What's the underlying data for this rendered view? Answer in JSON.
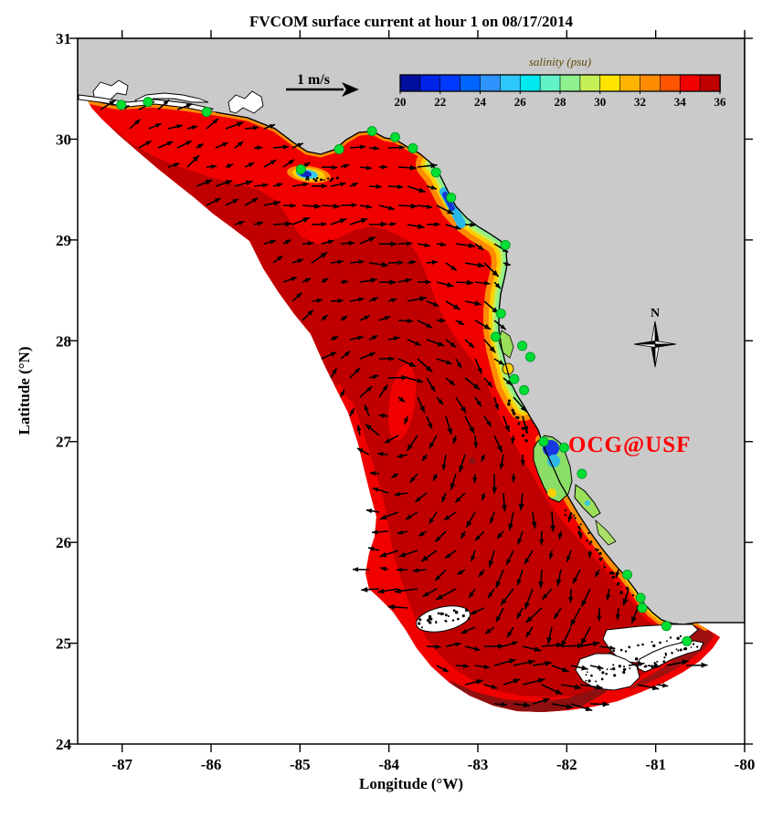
{
  "title": "FVCOM surface current at hour 1 on 08/17/2014",
  "axes": {
    "xlabel": "Longitude (°W)",
    "ylabel": "Latitude (°N)",
    "x_ticks": [
      -87,
      -86,
      -85,
      -84,
      -83,
      -82,
      -81,
      -80
    ],
    "y_ticks": [
      24,
      25,
      26,
      27,
      28,
      29,
      30,
      31
    ],
    "x_range": [
      -87.5,
      -80
    ],
    "y_range": [
      24,
      31
    ]
  },
  "colorbar": {
    "title": "salinity (psu)",
    "min": 20,
    "max": 36,
    "tick_labels": [
      20,
      22,
      24,
      26,
      28,
      30,
      32,
      34,
      36
    ],
    "segment_colors": [
      "#000f9e",
      "#0023e8",
      "#0038ff",
      "#0064ff",
      "#2e93ff",
      "#2ec8ff",
      "#00e8f0",
      "#63f2c8",
      "#8ef08e",
      "#c4ef57",
      "#ffe400",
      "#ffb300",
      "#ff8c00",
      "#ff5400",
      "#f10000",
      "#c00000"
    ]
  },
  "scale_arrow": {
    "label": "1 m/s"
  },
  "compass": {
    "label": "N"
  },
  "annotation": {
    "label": "OCG@USF",
    "color": "#ff0000"
  },
  "stations": {
    "color": "#00df33",
    "lonlat": [
      [
        -87.01,
        30.34
      ],
      [
        -86.71,
        30.37
      ],
      [
        -86.05,
        30.27
      ],
      [
        -84.99,
        29.7
      ],
      [
        -84.56,
        29.9
      ],
      [
        -84.19,
        30.08
      ],
      [
        -83.93,
        30.02
      ],
      [
        -83.73,
        29.91
      ],
      [
        -83.47,
        29.67
      ],
      [
        -83.3,
        29.42
      ],
      [
        -82.69,
        28.95
      ],
      [
        -82.74,
        28.27
      ],
      [
        -82.8,
        28.04
      ],
      [
        -82.5,
        27.95
      ],
      [
        -82.41,
        27.84
      ],
      [
        -82.59,
        27.62
      ],
      [
        -82.48,
        27.51
      ],
      [
        -82.26,
        27.0
      ],
      [
        -82.03,
        26.94
      ],
      [
        -81.83,
        26.68
      ],
      [
        -81.32,
        25.68
      ],
      [
        -81.17,
        25.45
      ],
      [
        -81.15,
        25.35
      ],
      [
        -80.88,
        25.17
      ],
      [
        -80.65,
        25.02
      ]
    ]
  },
  "map_colors": {
    "land": "#cacaca",
    "outside_domain": "#ffffff",
    "shelf_red": "#f10000",
    "offshore_dark_red": "#c00000",
    "max_salinity_maroon": "#8e0f0f",
    "arrow": "#000000"
  },
  "quiver": {
    "grid_step": 21,
    "min_len": 8,
    "max_len": 22
  }
}
